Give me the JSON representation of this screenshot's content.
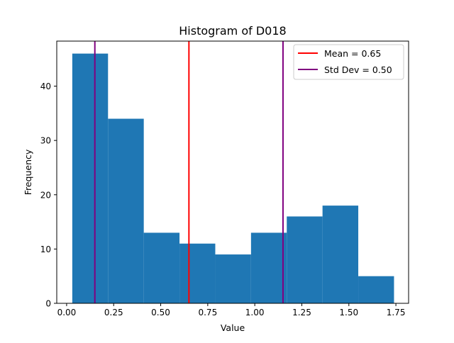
{
  "chart_data": {
    "type": "bar",
    "title": "Histogram of D018",
    "xlabel": "Value",
    "ylabel": "Frequency",
    "xlim": [
      -0.0525,
      1.8175
    ],
    "ylim": [
      0,
      48.3
    ],
    "x_ticks": [
      0.0,
      0.25,
      0.5,
      0.75,
      1.0,
      1.25,
      1.5,
      1.75
    ],
    "x_tick_labels": [
      "0.00",
      "0.25",
      "0.50",
      "0.75",
      "1.00",
      "1.25",
      "1.50",
      "1.75"
    ],
    "y_ticks": [
      0,
      10,
      20,
      30,
      40
    ],
    "y_tick_labels": [
      "0",
      "10",
      "20",
      "30",
      "40"
    ],
    "bins": [
      {
        "start": 0.03,
        "end": 0.22,
        "count": 46
      },
      {
        "start": 0.22,
        "end": 0.41,
        "count": 34
      },
      {
        "start": 0.41,
        "end": 0.6,
        "count": 13
      },
      {
        "start": 0.6,
        "end": 0.79,
        "count": 11
      },
      {
        "start": 0.79,
        "end": 0.98,
        "count": 9
      },
      {
        "start": 0.98,
        "end": 1.17,
        "count": 13
      },
      {
        "start": 1.17,
        "end": 1.36,
        "count": 16
      },
      {
        "start": 1.36,
        "end": 1.55,
        "count": 18
      },
      {
        "start": 1.55,
        "end": 1.74,
        "count": 5
      }
    ],
    "bar_color": "#1f77b4",
    "vlines": [
      {
        "x": 0.65,
        "color": "#ff0000",
        "legend": "Mean = 0.65"
      },
      {
        "x": 0.15,
        "color": "#800080",
        "legend": "Std Dev = 0.50"
      },
      {
        "x": 1.15,
        "color": "#800080",
        "legend": null
      }
    ],
    "legend_entries": [
      {
        "label": "Mean = 0.65",
        "color": "#ff0000"
      },
      {
        "label": "Std Dev = 0.50",
        "color": "#800080"
      }
    ],
    "legend_position": "top-right",
    "grid": false
  }
}
